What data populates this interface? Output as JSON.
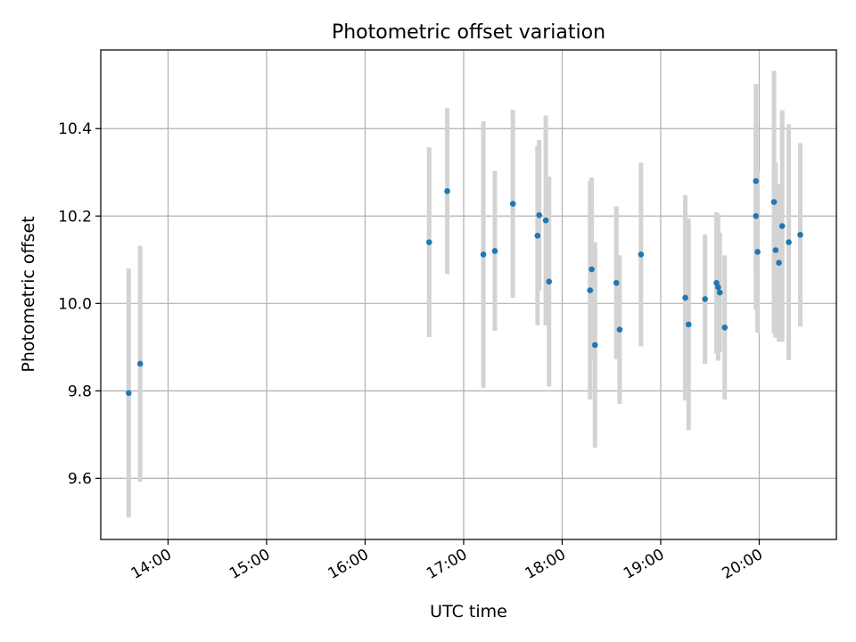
{
  "chart_data": {
    "type": "scatter",
    "title": "Photometric offset variation",
    "xlabel": "UTC time",
    "ylabel": "Photometric offset",
    "x_ticks": [
      "14:00",
      "15:00",
      "16:00",
      "17:00",
      "18:00",
      "19:00",
      "20:00"
    ],
    "y_ticks": [
      "9.6",
      "9.8",
      "10.0",
      "10.2",
      "10.4"
    ],
    "xlim": [
      "13:19",
      "20:47"
    ],
    "ylim": [
      9.46,
      10.58
    ],
    "grid": true,
    "error_bar_color": "#d3d3d3",
    "marker_color": "#1f77b4",
    "points": [
      {
        "x": "13:36",
        "y": 9.795,
        "yerr": 0.285
      },
      {
        "x": "13:43",
        "y": 9.862,
        "yerr": 0.27
      },
      {
        "x": "16:39",
        "y": 10.14,
        "yerr": 0.217
      },
      {
        "x": "16:50",
        "y": 10.257,
        "yerr": 0.19
      },
      {
        "x": "17:12",
        "y": 10.112,
        "yerr": 0.305
      },
      {
        "x": "17:19",
        "y": 10.12,
        "yerr": 0.183
      },
      {
        "x": "17:30",
        "y": 10.228,
        "yerr": 0.215
      },
      {
        "x": "17:45",
        "y": 10.155,
        "yerr": 0.205
      },
      {
        "x": "17:46",
        "y": 10.202,
        "yerr": 0.172
      },
      {
        "x": "17:50",
        "y": 10.19,
        "yerr": 0.24
      },
      {
        "x": "17:52",
        "y": 10.05,
        "yerr": 0.24
      },
      {
        "x": "18:17",
        "y": 10.03,
        "yerr": 0.25
      },
      {
        "x": "18:18",
        "y": 10.078,
        "yerr": 0.21
      },
      {
        "x": "18:20",
        "y": 9.905,
        "yerr": 0.235
      },
      {
        "x": "18:33",
        "y": 10.047,
        "yerr": 0.175
      },
      {
        "x": "18:35",
        "y": 9.94,
        "yerr": 0.17
      },
      {
        "x": "18:48",
        "y": 10.112,
        "yerr": 0.21
      },
      {
        "x": "19:15",
        "y": 10.013,
        "yerr": 0.235
      },
      {
        "x": "19:17",
        "y": 9.952,
        "yerr": 0.242
      },
      {
        "x": "19:27",
        "y": 10.01,
        "yerr": 0.148
      },
      {
        "x": "19:34",
        "y": 10.047,
        "yerr": 0.162
      },
      {
        "x": "19:35",
        "y": 10.037,
        "yerr": 0.168
      },
      {
        "x": "19:36",
        "y": 10.025,
        "yerr": 0.137
      },
      {
        "x": "19:39",
        "y": 9.945,
        "yerr": 0.165
      },
      {
        "x": "19:58",
        "y": 10.28,
        "yerr": 0.222
      },
      {
        "x": "19:58",
        "y": 10.2,
        "yerr": 0.215
      },
      {
        "x": "19:59",
        "y": 10.118,
        "yerr": 0.185
      },
      {
        "x": "20:09",
        "y": 10.232,
        "yerr": 0.3
      },
      {
        "x": "20:10",
        "y": 10.122,
        "yerr": 0.2
      },
      {
        "x": "20:12",
        "y": 10.093,
        "yerr": 0.18
      },
      {
        "x": "20:14",
        "y": 10.177,
        "yerr": 0.265
      },
      {
        "x": "20:18",
        "y": 10.14,
        "yerr": 0.27
      },
      {
        "x": "20:25",
        "y": 10.157,
        "yerr": 0.21
      }
    ]
  }
}
